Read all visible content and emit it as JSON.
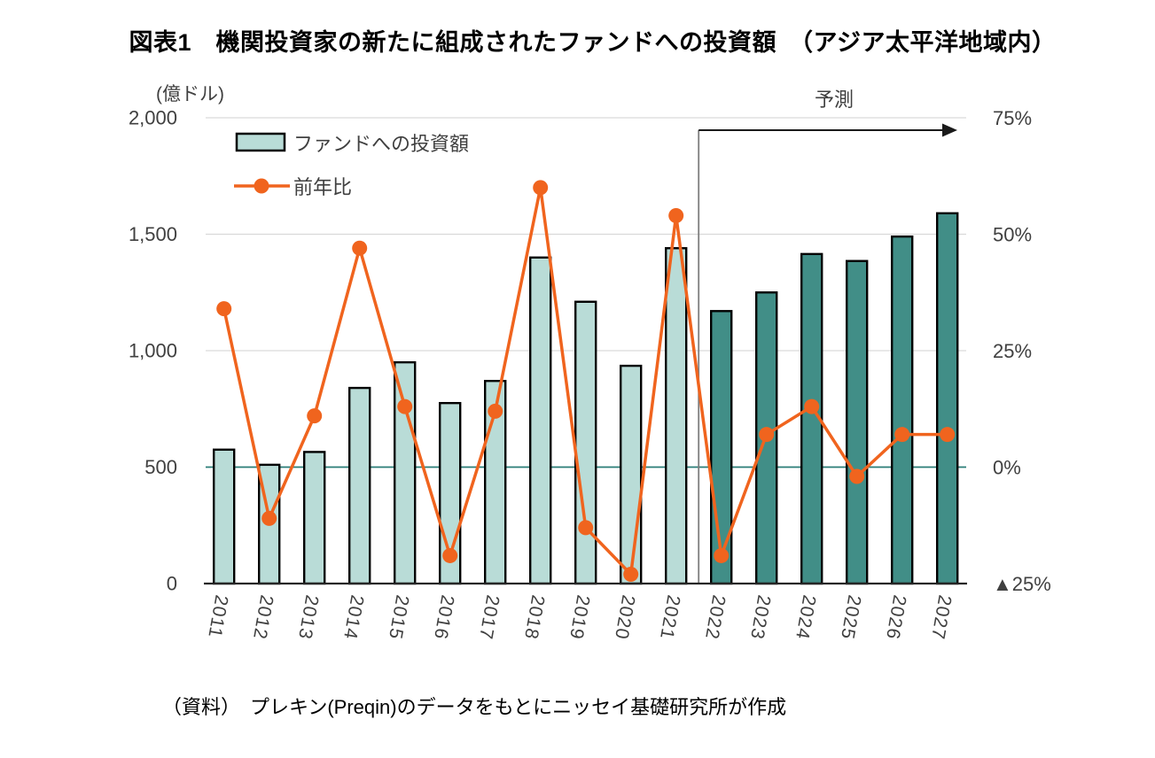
{
  "title": "図表1　機関投資家の新たに組成されたファンドへの投資額　（アジア太平洋地域内）",
  "source_note": "（資料）　プレキン(Preqin)のデータをもとにニッセイ基礎研究所が作成",
  "axis_unit_label": "(億ドル)",
  "forecast_label": "予測",
  "legend": {
    "bar_series_label": "ファンドへの投資額",
    "line_series_label": "前年比"
  },
  "left_axis": {
    "unit": "億ドル",
    "ticks": [
      "2,000",
      "1,500",
      "1,000",
      "500",
      "0"
    ],
    "min": 0,
    "max": 2000
  },
  "right_axis": {
    "ticks": [
      "75%",
      "50%",
      "25%",
      "0%",
      "▲25%"
    ],
    "min": -25,
    "max": 75
  },
  "colors": {
    "bar_actual_fill": "#B9DCD7",
    "bar_forecast_fill": "#418E87",
    "bar_border": "#000000",
    "line_color": "#F0641E",
    "zero_line": "#2A7D77",
    "gridline": "#D9D9D9",
    "axis_line": "#262626",
    "tick_text": "#404040",
    "forecast_divider": "#7F7F7F",
    "forecast_arrow": "#1A1A1A"
  },
  "chart_data": {
    "type": "bar+line",
    "categories": [
      "2011",
      "2012",
      "2013",
      "2014",
      "2015",
      "2016",
      "2017",
      "2018",
      "2019",
      "2020",
      "2021",
      "2022",
      "2023",
      "2024",
      "2025",
      "2026",
      "2027"
    ],
    "series": [
      {
        "name": "ファンドへの投資額",
        "type": "bar",
        "axis": "left",
        "unit": "億ドル",
        "values": [
          575,
          510,
          565,
          840,
          950,
          775,
          870,
          1400,
          1210,
          935,
          1440,
          1170,
          1250,
          1415,
          1385,
          1490,
          1590
        ]
      },
      {
        "name": "前年比",
        "type": "line",
        "axis": "right",
        "unit": "%",
        "values": [
          34,
          -11,
          11,
          47,
          13,
          -19,
          12,
          60,
          -13,
          -23,
          54,
          -19,
          7,
          13,
          -2,
          7,
          7
        ]
      }
    ],
    "forecast_start_category": "2022",
    "left_axis_range": [
      0,
      2000
    ],
    "right_axis_range": [
      -25,
      75
    ],
    "grid": true,
    "legend_position": "top-left-inside"
  }
}
